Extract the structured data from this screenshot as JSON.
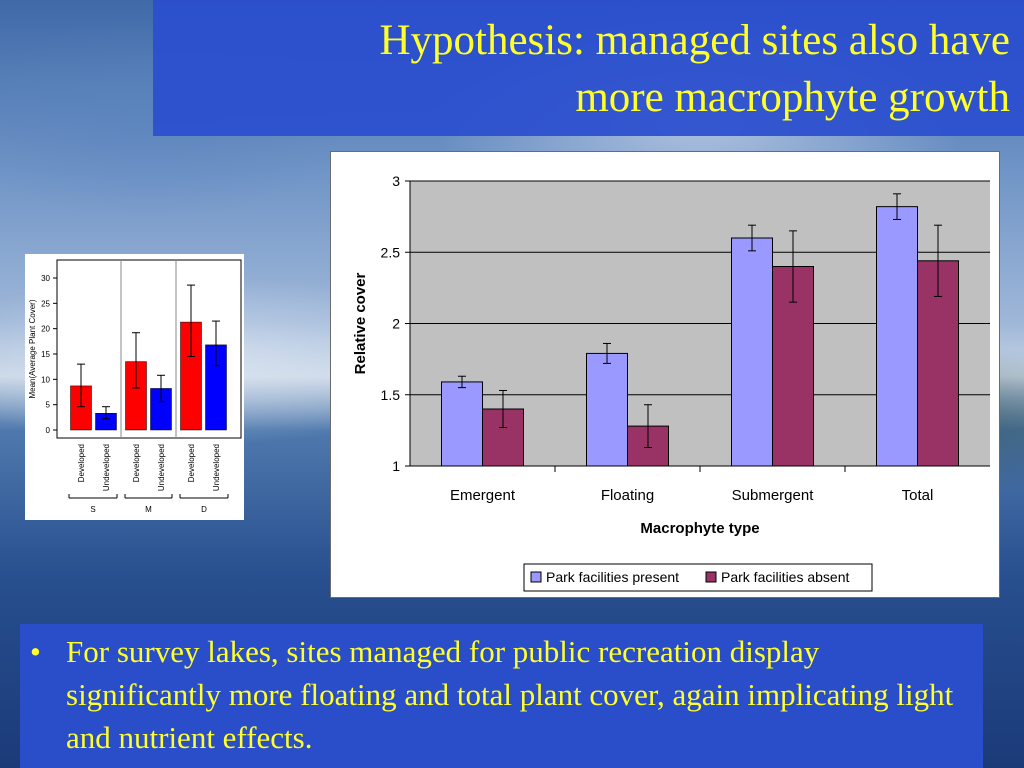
{
  "slide": {
    "title_line1": "Hypothesis: managed sites also have",
    "title_line2": "more macrophyte growth",
    "bullet_symbol": "•",
    "bullet_text": "For survey lakes, sites managed for public recreation display significantly more floating and total plant cover, again implicating light and nutrient effects."
  },
  "colors": {
    "title_text": "#ffff2a",
    "box_blue": "#2b4fcf",
    "series_present": "#9999ff",
    "series_absent": "#993366",
    "developed": "#ff0000",
    "undeveloped": "#0000ff"
  },
  "chart_data": [
    {
      "type": "bar",
      "categories": [
        "Emergent",
        "Floating",
        "Submergent",
        "Total"
      ],
      "series": [
        {
          "name": "Park facilities present",
          "values": [
            1.59,
            1.79,
            2.6,
            2.82
          ],
          "errors": [
            0.04,
            0.07,
            0.09,
            0.09
          ]
        },
        {
          "name": "Park facilities absent",
          "values": [
            1.4,
            1.28,
            2.4,
            2.44
          ],
          "errors": [
            0.13,
            0.15,
            0.25,
            0.25
          ]
        }
      ],
      "title": "",
      "xlabel": "Macrophyte type",
      "ylabel": "Relative cover",
      "ylim": [
        1,
        3
      ],
      "yticks": [
        "1",
        "1.5",
        "2",
        "2.5",
        "3"
      ],
      "grid": true,
      "legend": "bottom-right"
    },
    {
      "type": "bar",
      "categories": [
        "Developed",
        "Undeveloped",
        "Developed",
        "Undeveloped",
        "Developed",
        "Undeveloped"
      ],
      "groups": [
        "S",
        "M",
        "D"
      ],
      "values": [
        8.7,
        3.3,
        13.5,
        8.2,
        21.3,
        16.8
      ],
      "error_high": [
        13.0,
        4.6,
        19.2,
        10.8,
        28.6,
        21.5
      ],
      "error_low": [
        4.6,
        2.2,
        8.3,
        5.6,
        14.5,
        12.7
      ],
      "ylabel": "Mean(Average Plant Cover)",
      "ylim": [
        0,
        32
      ],
      "yticks": [
        "0",
        "5",
        "10",
        "15",
        "20",
        "25",
        "30"
      ],
      "grid": false
    }
  ]
}
